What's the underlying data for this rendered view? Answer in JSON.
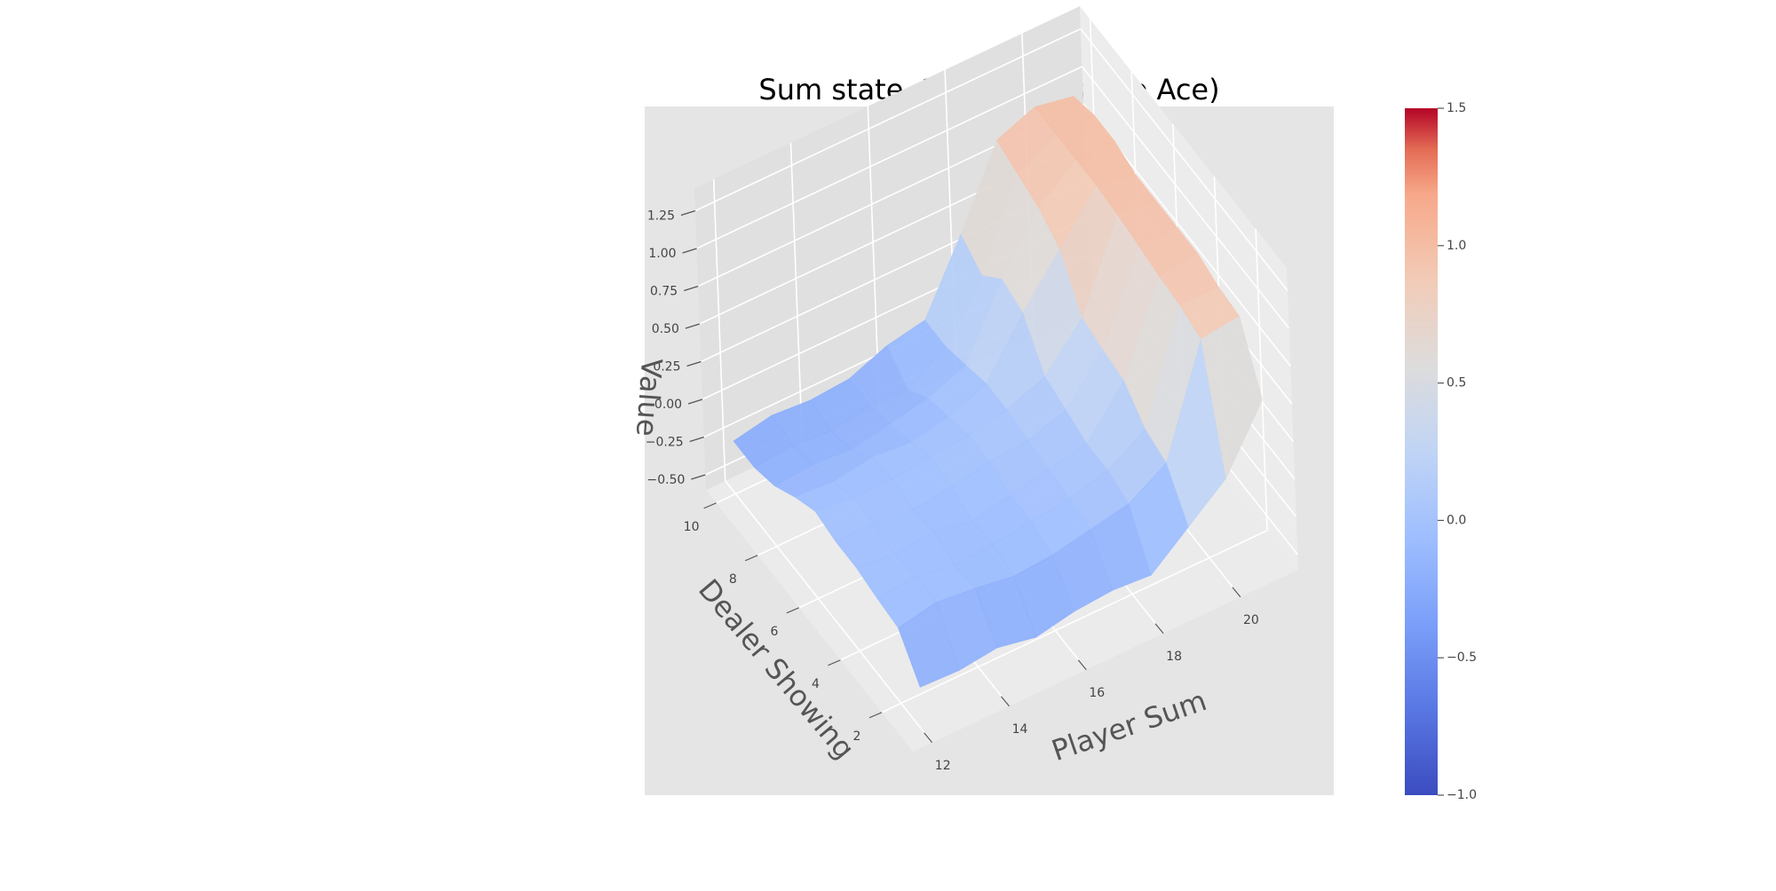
{
  "chart_data": {
    "type": "surface3d",
    "title": "Sum state, 2 decks (Usable Ace)",
    "xlabel": "Player Sum",
    "ylabel": "Dealer Showing",
    "zlabel": "Value",
    "x": [
      12,
      13,
      14,
      15,
      16,
      17,
      18,
      19,
      20,
      21
    ],
    "y": [
      1,
      2,
      3,
      4,
      5,
      6,
      7,
      8,
      9,
      10
    ],
    "xlim": [
      11.5,
      21.5
    ],
    "ylim": [
      0.5,
      10.5
    ],
    "zlim": [
      -0.6,
      1.4
    ],
    "x_ticks": [
      12,
      14,
      16,
      18,
      20
    ],
    "y_ticks": [
      2,
      4,
      6,
      8,
      10
    ],
    "z_ticks": [
      -0.5,
      -0.25,
      0.0,
      0.25,
      0.5,
      0.75,
      1.0,
      1.25
    ],
    "z_tick_labels": [
      "−0.50",
      "−0.25",
      "0.00",
      "0.25",
      "0.50",
      "0.75",
      "1.00",
      "1.25"
    ],
    "z_values_by_dealer": [
      [
        -0.32,
        -0.33,
        -0.3,
        -0.35,
        -0.3,
        -0.28,
        -0.3,
        -0.1,
        0.1,
        0.5
      ],
      [
        -0.1,
        -0.05,
        -0.08,
        -0.12,
        -0.1,
        -0.05,
        0.0,
        0.15,
        0.85,
        0.88
      ],
      [
        -0.08,
        -0.05,
        -0.1,
        -0.08,
        -0.05,
        -0.02,
        0.05,
        0.2,
        0.9,
        0.9
      ],
      [
        -0.05,
        -0.08,
        -0.05,
        -0.1,
        -0.05,
        0.0,
        0.05,
        0.35,
        0.92,
        0.95
      ],
      [
        -0.05,
        -0.05,
        -0.08,
        -0.05,
        0.0,
        0.02,
        0.1,
        0.38,
        0.95,
        0.95
      ],
      [
        -0.02,
        -0.05,
        -0.05,
        -0.02,
        0.0,
        0.05,
        0.15,
        0.42,
        0.98,
        0.95
      ],
      [
        -0.1,
        -0.12,
        -0.08,
        -0.1,
        -0.05,
        0.05,
        0.4,
        0.7,
        1.0,
        0.95
      ],
      [
        -0.2,
        -0.18,
        -0.2,
        -0.15,
        -0.1,
        0.0,
        0.45,
        0.8,
        1.0,
        1.0
      ],
      [
        -0.25,
        -0.22,
        -0.25,
        -0.2,
        -0.22,
        -0.05,
        0.3,
        0.85,
        1.0,
        1.0
      ],
      [
        -0.25,
        -0.2,
        -0.22,
        -0.2,
        -0.1,
        -0.05,
        0.4,
        0.9,
        1.0,
        0.95
      ]
    ],
    "colorbar": {
      "min": -1.0,
      "max": 1.5,
      "ticks": [
        -1.0,
        -0.5,
        0.0,
        0.5,
        1.0,
        1.5
      ],
      "tick_labels": [
        "−1.0",
        "−0.5",
        "0.0",
        "0.5",
        "1.0",
        "1.5"
      ],
      "colormap": "coolwarm"
    },
    "colors": {
      "pane": "#e5e5e5",
      "grid": "#ffffff",
      "label": "#555555",
      "cmap_low": "#3b4cc0",
      "cmap_mid": "#dddddd",
      "cmap_high": "#b40426"
    }
  }
}
